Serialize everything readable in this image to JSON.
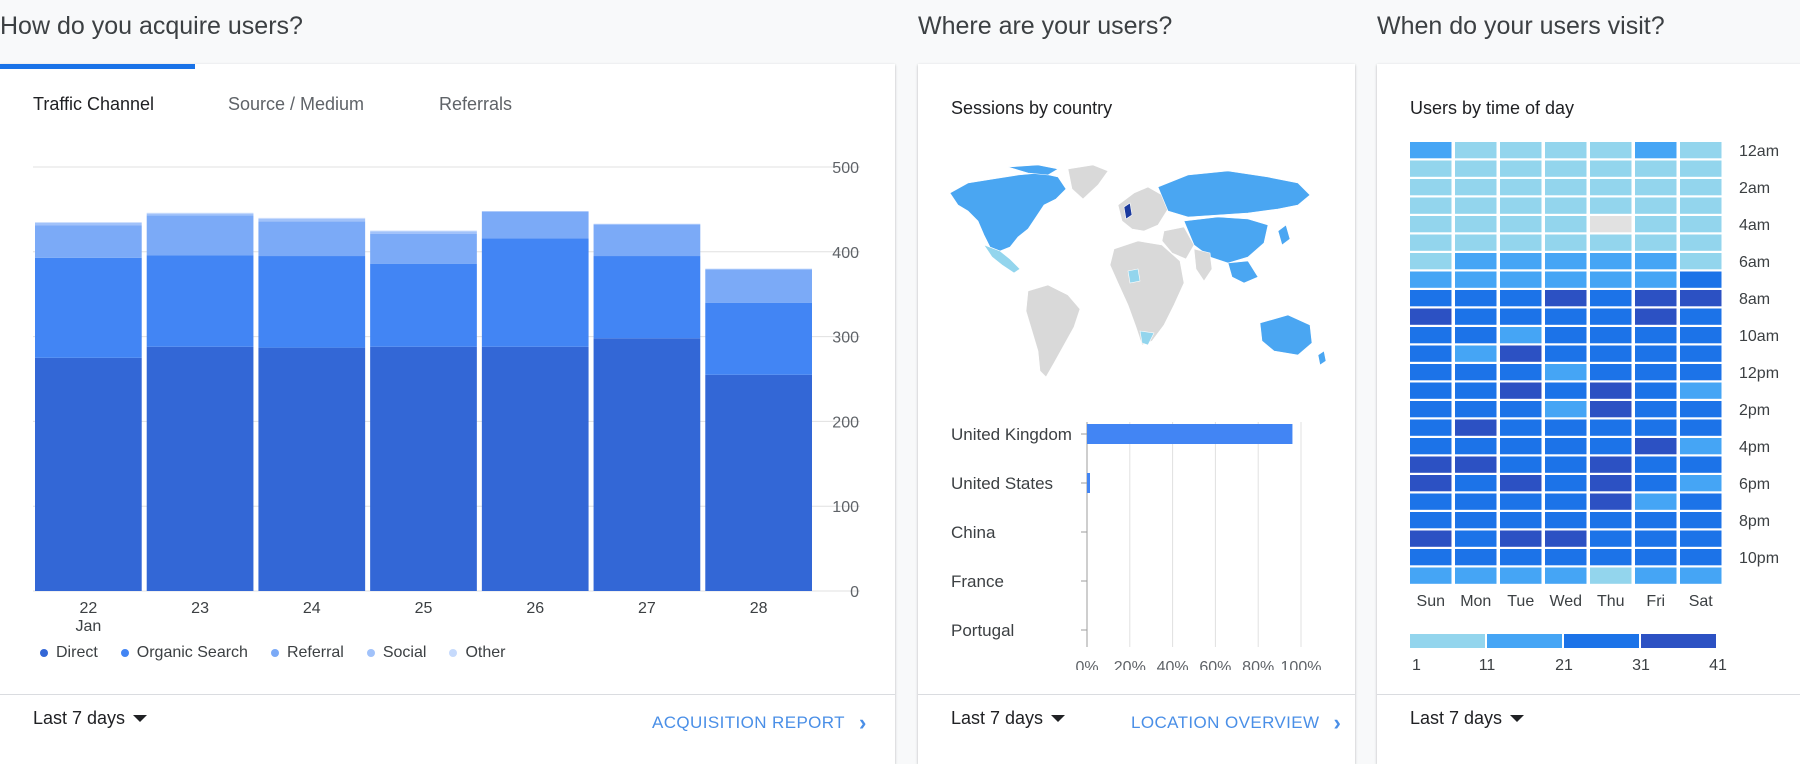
{
  "sections": {
    "acquire_title": "How do you acquire users?",
    "where_title": "Where are your users?",
    "when_title": "When do your users visit?"
  },
  "acquisition": {
    "tabs": [
      {
        "label": "Traffic Channel",
        "active": true
      },
      {
        "label": "Source / Medium",
        "active": false
      },
      {
        "label": "Referrals",
        "active": false
      }
    ],
    "date_range": "Last 7 days",
    "report_link": "ACQUISITION REPORT",
    "legend": [
      {
        "label": "Direct",
        "color": "#3367d6"
      },
      {
        "label": "Organic Search",
        "color": "#4285f4"
      },
      {
        "label": "Referral",
        "color": "#7baaf7"
      },
      {
        "label": "Social",
        "color": "#a1c2fa"
      },
      {
        "label": "Other",
        "color": "#c6dafc"
      }
    ]
  },
  "chart_data": [
    {
      "type": "bar",
      "stacked": true,
      "categories": [
        "22",
        "23",
        "24",
        "25",
        "26",
        "27",
        "28"
      ],
      "category_sublabel": {
        "22": "Jan"
      },
      "series": [
        {
          "name": "Direct",
          "values": [
            275,
            288,
            287,
            288,
            288,
            298,
            255
          ]
        },
        {
          "name": "Organic Search",
          "values": [
            118,
            108,
            108,
            98,
            128,
            97,
            85
          ]
        },
        {
          "name": "Referral",
          "values": [
            38,
            47,
            41,
            35,
            31,
            37,
            39
          ]
        },
        {
          "name": "Social",
          "values": [
            3,
            2,
            3,
            3,
            1,
            1,
            1
          ]
        },
        {
          "name": "Other",
          "values": [
            1,
            1,
            1,
            1,
            0,
            0,
            0
          ]
        }
      ],
      "ylim": [
        0,
        500
      ],
      "yticks": [
        0,
        100,
        200,
        300,
        400,
        500
      ],
      "grid": true
    },
    {
      "type": "bar",
      "orientation": "horizontal",
      "title": "Sessions by country",
      "categories": [
        "United Kingdom",
        "United States",
        "China",
        "France",
        "Portugal"
      ],
      "values": [
        96,
        1,
        0,
        0,
        0
      ],
      "xticks": [
        "0%",
        "20%",
        "40%",
        "60%",
        "80%",
        "100%"
      ],
      "xlim": [
        0,
        100
      ]
    },
    {
      "type": "heatmap",
      "title": "Users by time of day",
      "days": [
        "Sun",
        "Mon",
        "Tue",
        "Wed",
        "Thu",
        "Fri",
        "Sat"
      ],
      "hour_labels": [
        "12am",
        "2am",
        "4am",
        "6am",
        "8am",
        "10am",
        "12pm",
        "2pm",
        "4pm",
        "6pm",
        "8pm",
        "10pm"
      ],
      "values": [
        [
          15,
          8,
          8,
          8,
          8,
          15,
          8
        ],
        [
          8,
          8,
          8,
          8,
          8,
          8,
          8
        ],
        [
          8,
          8,
          8,
          8,
          8,
          8,
          8
        ],
        [
          8,
          8,
          8,
          8,
          8,
          8,
          8
        ],
        [
          8,
          8,
          8,
          8,
          0,
          8,
          8
        ],
        [
          8,
          8,
          8,
          8,
          8,
          8,
          8
        ],
        [
          8,
          15,
          15,
          15,
          15,
          15,
          8
        ],
        [
          15,
          15,
          15,
          15,
          15,
          15,
          25
        ],
        [
          25,
          25,
          25,
          35,
          25,
          35,
          35
        ],
        [
          35,
          25,
          25,
          25,
          25,
          35,
          25
        ],
        [
          25,
          25,
          15,
          25,
          25,
          25,
          25
        ],
        [
          25,
          15,
          35,
          25,
          25,
          25,
          25
        ],
        [
          25,
          25,
          25,
          15,
          25,
          25,
          25
        ],
        [
          25,
          25,
          35,
          25,
          35,
          25,
          15
        ],
        [
          25,
          25,
          25,
          15,
          35,
          25,
          25
        ],
        [
          25,
          35,
          25,
          25,
          25,
          25,
          25
        ],
        [
          25,
          25,
          25,
          25,
          25,
          35,
          15
        ],
        [
          35,
          35,
          25,
          25,
          35,
          25,
          25
        ],
        [
          35,
          25,
          35,
          25,
          35,
          25,
          15
        ],
        [
          25,
          25,
          25,
          25,
          35,
          15,
          25
        ],
        [
          25,
          25,
          25,
          25,
          25,
          25,
          25
        ],
        [
          35,
          25,
          35,
          35,
          25,
          25,
          25
        ],
        [
          25,
          25,
          25,
          25,
          25,
          25,
          25
        ],
        [
          15,
          15,
          15,
          15,
          8,
          15,
          15
        ]
      ],
      "scale_labels": [
        "1",
        "11",
        "21",
        "31",
        "41"
      ],
      "scale_colors": [
        "#93d5ed",
        "#45a5f5",
        "#1c73e8",
        "#2c51c3"
      ]
    }
  ],
  "location": {
    "card_title": "Sessions by country",
    "date_range": "Last 7 days",
    "report_link": "LOCATION OVERVIEW"
  },
  "time": {
    "card_title": "Users by time of day",
    "date_range": "Last 7 days"
  },
  "colors": {
    "accent": "#1a73e8",
    "link": "#4a8fe7",
    "map_active": "#4aa6f2",
    "map_light": "#93d5ed",
    "map_inactive": "#d9d9d9",
    "map_uk": "#1b3a9e"
  }
}
